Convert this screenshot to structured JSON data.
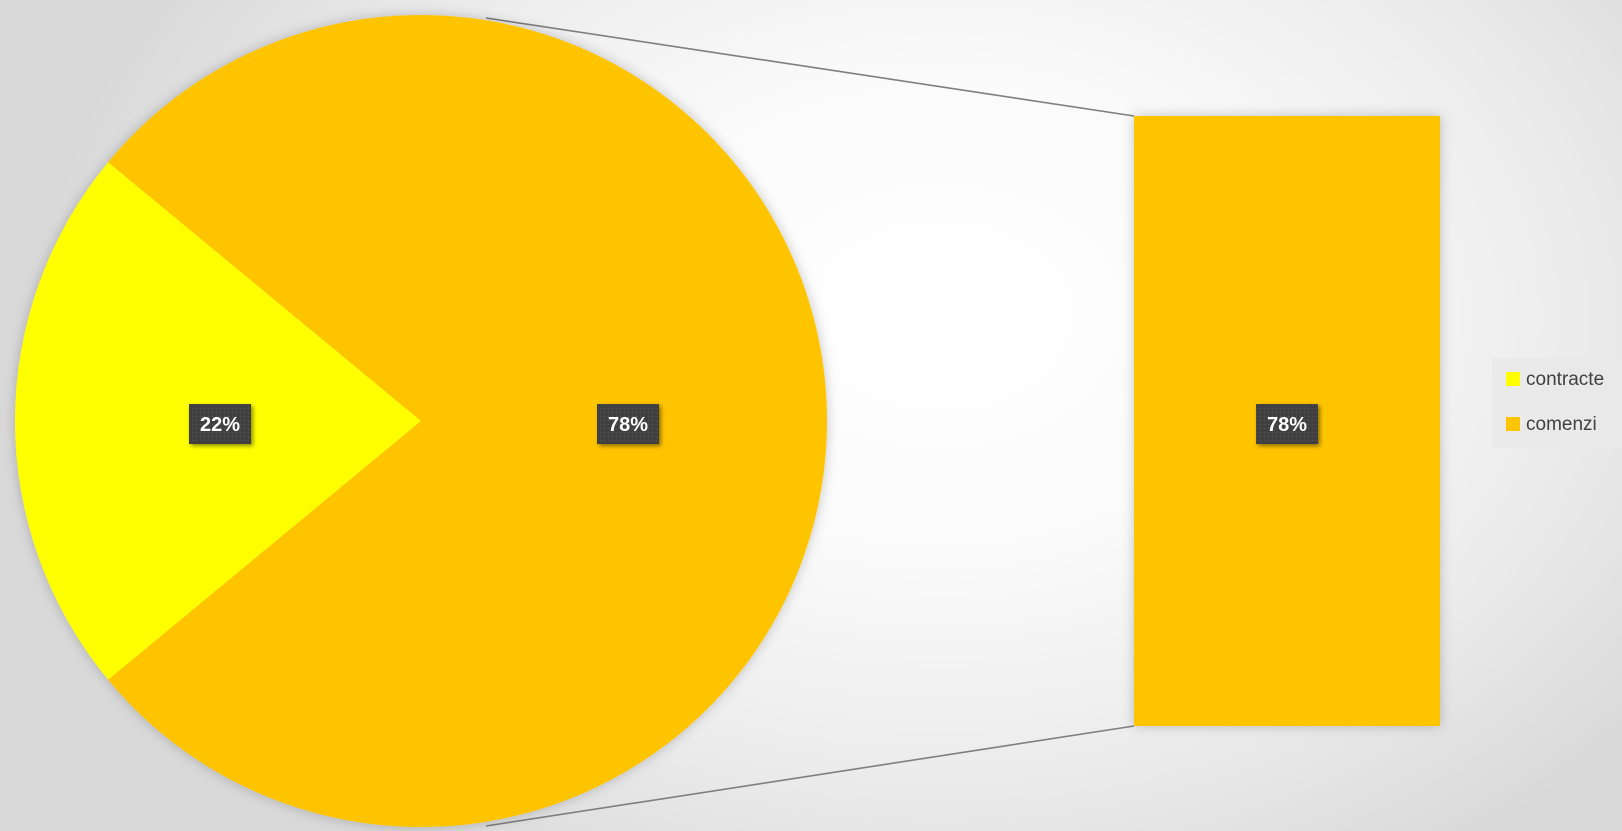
{
  "chart_data": {
    "type": "pie",
    "subtype": "bar-of-pie",
    "categories": [
      "contracte",
      "comenzi"
    ],
    "values": [
      22,
      78
    ],
    "value_format": "percent",
    "colors": {
      "contracte": "#FFFF00",
      "comenzi": "#FFC400"
    },
    "data_labels": {
      "pie": [
        "22%",
        "78%"
      ],
      "bar": [
        "78%"
      ]
    },
    "secondary_plot": {
      "series": [
        "comenzi"
      ],
      "values": [
        78
      ]
    },
    "legend": {
      "position": "right",
      "entries": [
        "contracte",
        "comenzi"
      ]
    },
    "title": ""
  }
}
